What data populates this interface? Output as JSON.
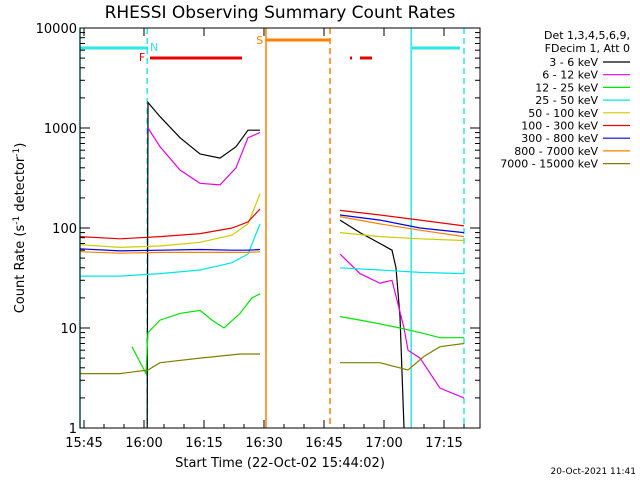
{
  "chart_data": {
    "type": "line",
    "title": "RHESSI Observing Summary Count Rates",
    "xlabel": "Start Time (22-Oct-02 15:44:02)",
    "ylabel": "Count Rate (s⁻¹ detector⁻¹)",
    "ylabel_main": "Count Rate (s",
    "ylabel_sup1": "-1",
    "ylabel_mid": " detector",
    "ylabel_sup2": "-1",
    "ylabel_end": ")",
    "x_unit": "minutes after 15:44:02",
    "xlim": [
      0,
      100
    ],
    "ylim": [
      1,
      10000
    ],
    "yscale": "log",
    "x_ticks": [
      {
        "t": 1,
        "label": "15:45"
      },
      {
        "t": 16,
        "label": "16:00"
      },
      {
        "t": 31,
        "label": "16:15"
      },
      {
        "t": 46,
        "label": "16:30"
      },
      {
        "t": 61,
        "label": "16:45"
      },
      {
        "t": 76,
        "label": "17:00"
      },
      {
        "t": 91,
        "label": "17:15"
      }
    ],
    "y_ticks": [
      {
        "v": 1,
        "label": "1"
      },
      {
        "v": 10,
        "label": "10"
      },
      {
        "v": 100,
        "label": "100"
      },
      {
        "v": 1000,
        "label": "1000"
      },
      {
        "v": 10000,
        "label": "10000"
      }
    ],
    "legend_header": [
      "Det 1,3,4,5,6,9,",
      "FDecim 1, Att 0"
    ],
    "timestamp": "20-Oct-2021 11:41",
    "flags": {
      "night_label": "N",
      "flare_label": "F",
      "saa_label": "S",
      "night": [
        [
          0,
          17
        ],
        [
          83,
          95
        ]
      ],
      "flare": [
        [
          17.5,
          40.5
        ],
        [
          67.5,
          68
        ],
        [
          70,
          73
        ]
      ],
      "saa": [
        [
          46.5,
          62.5
        ]
      ],
      "night_color": "#2ee6e6",
      "flare_color": "#e60000",
      "saa_color": "#ff8000"
    },
    "boundaries": [
      {
        "t": 0,
        "color": "#2ee6e6",
        "style": "solid"
      },
      {
        "t": 16.8,
        "color": "#2ee6e6",
        "style": "dashed"
      },
      {
        "t": 46.5,
        "color": "#ff8000",
        "style": "solid"
      },
      {
        "t": 62.5,
        "color": "#ff8000",
        "style": "dashed"
      },
      {
        "t": 82.8,
        "color": "#2ee6e6",
        "style": "solid"
      },
      {
        "t": 96,
        "color": "#2ee6e6",
        "style": "dashed"
      }
    ],
    "series": [
      {
        "name": "3 - 6 keV",
        "color": "#000000",
        "segments": [
          [
            [
              16.8,
              1
            ],
            [
              17,
              1800
            ],
            [
              20,
              1300
            ],
            [
              25,
              800
            ],
            [
              30,
              550
            ],
            [
              35,
              500
            ],
            [
              39,
              650
            ],
            [
              42,
              950
            ],
            [
              45,
              950
            ]
          ],
          [
            [
              65,
              120
            ],
            [
              70,
              90
            ],
            [
              75,
              70
            ],
            [
              78,
              60
            ],
            [
              79,
              40
            ],
            [
              80,
              13
            ],
            [
              81,
              1
            ]
          ]
        ]
      },
      {
        "name": "6 - 12 keV",
        "color": "#e600e6",
        "segments": [
          [
            [
              17,
              1000
            ],
            [
              20,
              650
            ],
            [
              25,
              380
            ],
            [
              30,
              280
            ],
            [
              35,
              270
            ],
            [
              39,
              400
            ],
            [
              42,
              800
            ],
            [
              45,
              900
            ]
          ],
          [
            [
              65,
              55
            ],
            [
              70,
              35
            ],
            [
              75,
              28
            ],
            [
              78,
              30
            ],
            [
              81,
              10
            ],
            [
              82,
              6
            ],
            [
              85,
              5
            ],
            [
              90,
              2.5
            ],
            [
              96,
              2
            ]
          ]
        ]
      },
      {
        "name": "12 - 25 keV",
        "color": "#00e600",
        "segments": [
          [
            [
              13,
              6.5
            ],
            [
              16.5,
              3.5
            ],
            [
              17,
              9
            ],
            [
              20,
              12
            ],
            [
              25,
              14
            ],
            [
              30,
              15
            ],
            [
              33,
              12
            ],
            [
              36,
              10
            ],
            [
              40,
              14
            ],
            [
              43,
              20
            ],
            [
              45,
              22
            ]
          ],
          [
            [
              65,
              13
            ],
            [
              70,
              12
            ],
            [
              75,
              11
            ],
            [
              80,
              10
            ],
            [
              85,
              9
            ],
            [
              90,
              8
            ],
            [
              96,
              8
            ]
          ]
        ]
      },
      {
        "name": "25 - 50 keV",
        "color": "#00e6e6",
        "segments": [
          [
            [
              0,
              33
            ],
            [
              10,
              33
            ],
            [
              20,
              35
            ],
            [
              30,
              38
            ],
            [
              38,
              45
            ],
            [
              42,
              55
            ],
            [
              45,
              110
            ]
          ],
          [
            [
              65,
              40
            ],
            [
              75,
              38
            ],
            [
              85,
              36
            ],
            [
              96,
              35
            ]
          ]
        ]
      },
      {
        "name": "50 - 100 keV",
        "color": "#cccc00",
        "segments": [
          [
            [
              0,
              68
            ],
            [
              10,
              64
            ],
            [
              20,
              66
            ],
            [
              30,
              72
            ],
            [
              38,
              85
            ],
            [
              42,
              110
            ],
            [
              45,
              220
            ]
          ],
          [
            [
              65,
              90
            ],
            [
              75,
              82
            ],
            [
              85,
              78
            ],
            [
              96,
              75
            ]
          ]
        ]
      },
      {
        "name": "100 - 300 keV",
        "color": "#e60000",
        "segments": [
          [
            [
              0,
              82
            ],
            [
              10,
              78
            ],
            [
              20,
              82
            ],
            [
              30,
              88
            ],
            [
              38,
              100
            ],
            [
              42,
              115
            ],
            [
              45,
              155
            ]
          ],
          [
            [
              65,
              150
            ],
            [
              75,
              135
            ],
            [
              85,
              120
            ],
            [
              96,
              105
            ]
          ]
        ]
      },
      {
        "name": "300 - 800 keV",
        "color": "#0000e6",
        "segments": [
          [
            [
              0,
              62
            ],
            [
              10,
              59
            ],
            [
              20,
              60
            ],
            [
              30,
              61
            ],
            [
              38,
              60
            ],
            [
              42,
              60
            ],
            [
              45,
              61
            ]
          ],
          [
            [
              65,
              135
            ],
            [
              75,
              120
            ],
            [
              85,
              100
            ],
            [
              96,
              90
            ]
          ]
        ]
      },
      {
        "name": "800 - 7000 keV",
        "color": "#ff8000",
        "segments": [
          [
            [
              0,
              58
            ],
            [
              10,
              56
            ],
            [
              20,
              57
            ],
            [
              30,
              57
            ],
            [
              38,
              57
            ],
            [
              42,
              57
            ],
            [
              45,
              58
            ]
          ],
          [
            [
              65,
              130
            ],
            [
              75,
              110
            ],
            [
              85,
              95
            ],
            [
              96,
              82
            ]
          ]
        ]
      },
      {
        "name": "7000 - 15000 keV",
        "color": "#808000",
        "segments": [
          [
            [
              0,
              3.5
            ],
            [
              10,
              3.5
            ],
            [
              17,
              3.8
            ],
            [
              20,
              4.5
            ],
            [
              30,
              5
            ],
            [
              40,
              5.5
            ],
            [
              45,
              5.5
            ]
          ],
          [
            [
              65,
              4.5
            ],
            [
              75,
              4.5
            ],
            [
              82,
              3.8
            ],
            [
              86,
              5.2
            ],
            [
              90,
              6.5
            ],
            [
              96,
              7
            ]
          ]
        ]
      }
    ]
  }
}
